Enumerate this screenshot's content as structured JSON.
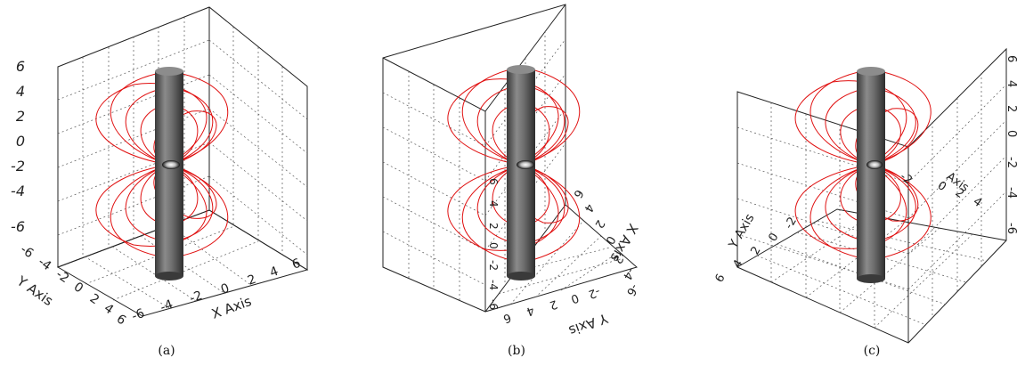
{
  "figure": {
    "panels": [
      {
        "caption": "(a)",
        "axis_labels": {
          "x": "X Axis",
          "y": "Y Axis",
          "z": ""
        },
        "z_ticks": [
          "6",
          "4",
          "2",
          "0",
          "-2",
          "-4",
          "-6"
        ],
        "x_ticks": [
          "-6",
          "-4",
          "-2",
          "0",
          "2",
          "4",
          "6"
        ],
        "y_ticks": [
          "-6",
          "-4",
          "-2",
          "0",
          "2",
          "4",
          "6"
        ]
      },
      {
        "caption": "(b)",
        "axis_labels": {
          "x": "X Axis",
          "y": "Y Axis",
          "z": ""
        },
        "x_ticks": [
          "-6",
          "-4",
          "-2",
          "0",
          "2",
          "4",
          "6"
        ],
        "y_ticks": [
          "6",
          "4",
          "2",
          "0",
          "-2",
          "-4",
          "-6"
        ],
        "z_ticks": [
          "6",
          "4",
          "2",
          "0",
          "-2",
          "-4",
          "-6"
        ]
      },
      {
        "caption": "(c)",
        "axis_labels": {
          "x": "Axis",
          "y": "Y Axis",
          "z": ""
        },
        "x_ticks": [
          "4",
          "2",
          "0",
          "-2"
        ],
        "y_ticks": [
          "6",
          "4",
          "2",
          "0",
          "-2"
        ],
        "z_ticks": [
          "6",
          "4",
          "2",
          "0",
          "-2",
          "-4",
          "-6"
        ]
      }
    ],
    "colors": {
      "field_lines": "#e01010",
      "cylinder": "#6a6a6a",
      "frame": "#222222",
      "grid": "#555555"
    }
  }
}
